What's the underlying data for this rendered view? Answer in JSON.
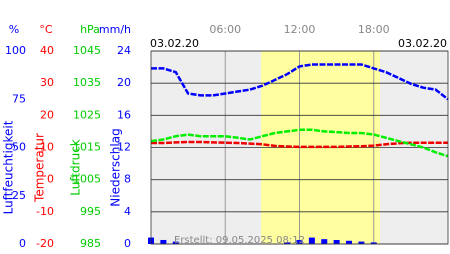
{
  "chart_data": {
    "type": "multi-axis",
    "dates": [
      "03.02.20",
      "03.02.20"
    ],
    "footer": "Erstellt: 09.05.2025 08:12",
    "x": [
      0,
      1,
      2,
      3,
      4,
      5,
      6,
      7,
      8,
      9,
      10,
      11,
      12,
      13,
      14,
      15,
      16,
      17,
      18,
      19,
      20,
      21,
      22,
      23,
      24
    ],
    "xlim": [
      0,
      24
    ],
    "xticks": [
      {
        "value": 6,
        "label": "06:00"
      },
      {
        "value": 12,
        "label": "12:00"
      },
      {
        "value": 18,
        "label": "18:00"
      }
    ],
    "daylight": [
      8.9,
      18.5
    ],
    "axes": [
      {
        "unit": "%",
        "label": "Luftfeuchtigkeit",
        "color": "#0000ff",
        "lim": [
          0,
          100
        ],
        "ticks": [
          0,
          25,
          50,
          75,
          100
        ]
      },
      {
        "unit": "°C",
        "label": "Temperatur",
        "color": "#ff0000",
        "lim": [
          -20,
          40
        ],
        "ticks": [
          -20,
          -10,
          0,
          10,
          20,
          30,
          40
        ]
      },
      {
        "unit": "hPa",
        "label": "Luftdruck",
        "color": "#00cc00",
        "lim": [
          985,
          1045
        ],
        "ticks": [
          985,
          995,
          1005,
          1015,
          1025,
          1035,
          1045
        ]
      },
      {
        "unit": "mm/h",
        "label": "Niederschlag",
        "color": "#0000ff",
        "lim": [
          0,
          24
        ],
        "ticks": [
          0,
          4,
          8,
          12,
          16,
          20,
          24
        ]
      }
    ],
    "series": [
      {
        "kind": "line",
        "axis": 0,
        "color": "#0000ff",
        "values": [
          91,
          91,
          89,
          78,
          77,
          77,
          78,
          79,
          80,
          82,
          85,
          88,
          92,
          93,
          93,
          93,
          93,
          93,
          91,
          89,
          86,
          83,
          81,
          80,
          75
        ]
      },
      {
        "kind": "line",
        "axis": 1,
        "color": "#ee0000",
        "values": [
          11.4,
          11.4,
          11.6,
          11.7,
          11.7,
          11.6,
          11.5,
          11.4,
          11.2,
          11,
          10.5,
          10.3,
          10.2,
          10.2,
          10.2,
          10.2,
          10.3,
          10.4,
          10.6,
          11,
          11.3,
          11.5,
          11.5,
          11.5,
          11.5
        ]
      },
      {
        "kind": "line",
        "axis": 2,
        "color": "#00ee00",
        "values": [
          1017,
          1017.5,
          1018.5,
          1019,
          1018.5,
          1018.5,
          1018.5,
          1018,
          1017.5,
          1018.5,
          1019.5,
          1020,
          1020.5,
          1020.5,
          1020,
          1019.8,
          1019.5,
          1019.5,
          1019,
          1018,
          1017,
          1016,
          1015,
          1013.5,
          1012.3
        ]
      },
      {
        "kind": "bar",
        "axis": 3,
        "color": "#0000ff",
        "values": [
          0.8,
          0.5,
          0.3,
          0,
          0,
          0,
          0,
          0,
          0,
          0,
          0,
          0.2,
          0.5,
          0.8,
          0.6,
          0.5,
          0.4,
          0.3,
          0.2,
          0,
          0,
          0,
          0,
          0,
          0
        ]
      }
    ]
  }
}
